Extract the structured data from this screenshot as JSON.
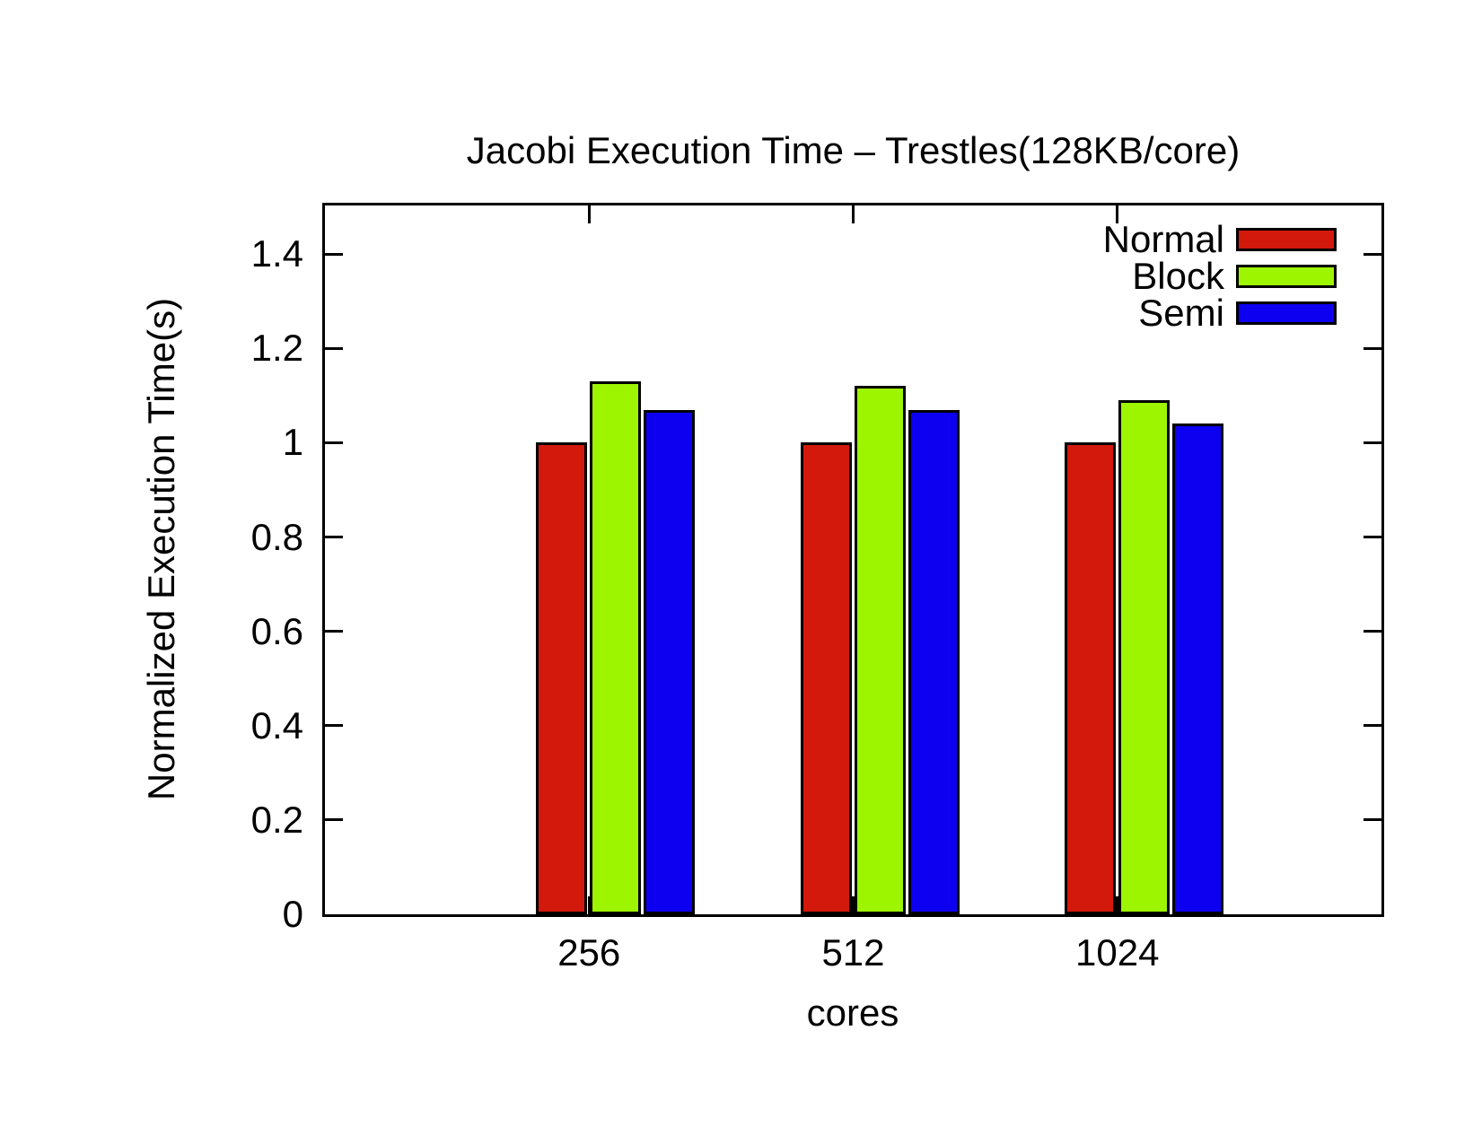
{
  "chart_data": {
    "type": "bar",
    "title": "Jacobi Execution Time – Trestles(128KB/core)",
    "xlabel": "cores",
    "ylabel": "Normalized Execution Time(s)",
    "categories": [
      "256",
      "512",
      "1024"
    ],
    "series": [
      {
        "name": "Normal",
        "color": "#d2190b",
        "values": [
          1.0,
          1.0,
          1.0
        ]
      },
      {
        "name": "Block",
        "color": "#9df500",
        "values": [
          1.13,
          1.12,
          1.09
        ]
      },
      {
        "name": "Semi",
        "color": "#0d00f0",
        "values": [
          1.07,
          1.07,
          1.04
        ]
      }
    ],
    "ylim": [
      0,
      1.503
    ],
    "yticks": [
      0,
      0.2,
      0.4,
      0.6,
      0.8,
      1,
      1.2,
      1.4
    ],
    "ytick_labels": [
      "0",
      "0.2",
      "0.4",
      "0.6",
      "0.8",
      "1",
      "1.2",
      "1.4"
    ],
    "legend": {
      "position": "top-right",
      "entries": [
        "Normal",
        "Block",
        "Semi"
      ]
    },
    "grid": false,
    "axis_color": "#000000",
    "background": "#ffffff"
  }
}
